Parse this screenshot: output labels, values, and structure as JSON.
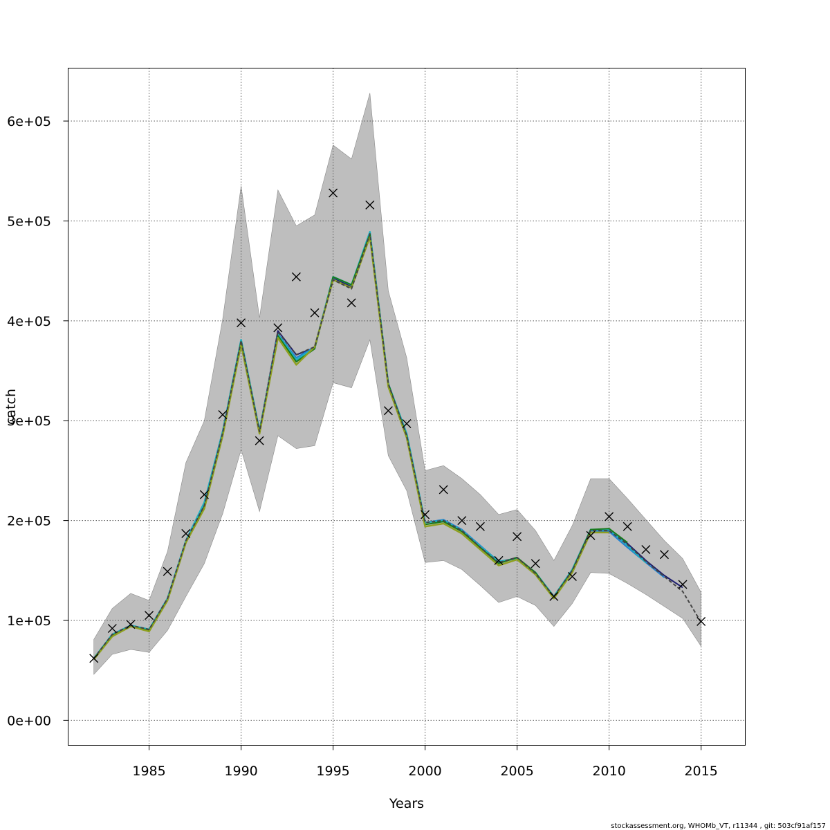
{
  "chart_data": {
    "type": "line",
    "xlabel": "Years",
    "ylabel": "catch",
    "xlim": [
      1980.6,
      2017.4
    ],
    "ylim": [
      -25000,
      653000
    ],
    "x_ticks": [
      1985,
      1990,
      1995,
      2000,
      2005,
      2010,
      2015
    ],
    "x_tick_labels": [
      "1985",
      "1990",
      "1995",
      "2000",
      "2005",
      "2010",
      "2015"
    ],
    "y_ticks": [
      0,
      100000,
      200000,
      300000,
      400000,
      500000,
      600000
    ],
    "y_tick_labels": [
      "0e+00",
      "1e+05",
      "2e+05",
      "3e+05",
      "4e+05",
      "5e+05",
      "6e+05"
    ],
    "grid": true,
    "credit": "stockassessment.org, WHOMb_VT, r11344 , git: 503cf91af157",
    "band": {
      "fill": "#bebebe",
      "years": [
        1982,
        1983,
        1984,
        1985,
        1986,
        1987,
        1988,
        1989,
        1990,
        1991,
        1992,
        1993,
        1994,
        1995,
        1996,
        1997,
        1998,
        1999,
        2000,
        2001,
        2002,
        2003,
        2004,
        2005,
        2006,
        2007,
        2008,
        2009,
        2010,
        2011,
        2012,
        2013,
        2014,
        2015
      ],
      "upper": [
        81000,
        112000,
        127000,
        120000,
        169000,
        258000,
        300000,
        402000,
        535000,
        403000,
        531000,
        495000,
        506000,
        576000,
        562000,
        628000,
        430000,
        363000,
        250000,
        255000,
        242000,
        226000,
        206000,
        211000,
        190000,
        160000,
        195000,
        242000,
        242000,
        222000,
        201000,
        180000,
        162000,
        128000
      ],
      "lower": [
        46000,
        66000,
        71000,
        68000,
        90000,
        124000,
        157000,
        207000,
        271000,
        209000,
        285000,
        272000,
        275000,
        338000,
        333000,
        381000,
        265000,
        230000,
        158000,
        160000,
        151000,
        135000,
        118000,
        124000,
        115000,
        94000,
        117000,
        148000,
        147000,
        137000,
        126000,
        114000,
        102000,
        74000
      ]
    },
    "series": [
      {
        "color": "#1d1d6e",
        "width": 2,
        "x": [
          1982,
          1983,
          1984,
          1985,
          1986,
          1987,
          1988,
          1989,
          1990,
          1991,
          1992,
          1993,
          1994,
          1995,
          1996,
          1997,
          1998,
          1999,
          2000,
          2001,
          2002,
          2003,
          2004,
          2005,
          2006,
          2007,
          2008,
          2009,
          2010,
          2011,
          2012,
          2013,
          2014
        ],
        "y": [
          62000,
          86000,
          95000,
          91000,
          122000,
          180000,
          215000,
          288000,
          381000,
          289000,
          390000,
          366000,
          373000,
          443000,
          434000,
          488000,
          337000,
          285000,
          198000,
          200000,
          190000,
          173000,
          158000,
          163000,
          147000,
          124000,
          150000,
          190000,
          190000,
          177000,
          160000,
          145000,
          133000
        ]
      },
      {
        "color": "#2080d0",
        "width": 2,
        "x": [
          1982,
          1983,
          1984,
          1985,
          1986,
          1987,
          1988,
          1989,
          1990,
          1991,
          1992,
          1993,
          1994,
          1995,
          1996,
          1997,
          1998,
          1999,
          2000,
          2001,
          2002,
          2003,
          2004,
          2005,
          2006,
          2007,
          2008,
          2009,
          2010,
          2011,
          2012,
          2013
        ],
        "y": [
          62000,
          86000,
          95000,
          91000,
          122000,
          180000,
          218000,
          290000,
          381000,
          290000,
          387000,
          363000,
          374000,
          444000,
          436000,
          489000,
          337000,
          287000,
          198000,
          201000,
          191000,
          175000,
          159000,
          162000,
          147000,
          124000,
          150000,
          190000,
          189000,
          173000,
          158000,
          143000
        ]
      },
      {
        "color": "#20b0c0",
        "width": 2.5,
        "x": [
          1982,
          1983,
          1984,
          1985,
          1986,
          1987,
          1988,
          1989,
          1990,
          1991,
          1992,
          1993,
          1994,
          1995,
          1996,
          1997,
          1998,
          1999,
          2000,
          2001,
          2002,
          2003,
          2004,
          2005,
          2006,
          2007,
          2008,
          2009,
          2010,
          2011,
          2012
        ],
        "y": [
          62000,
          86000,
          95000,
          91000,
          122000,
          180000,
          218000,
          289000,
          381000,
          290000,
          386000,
          361000,
          373000,
          444000,
          436000,
          489000,
          337000,
          287000,
          198000,
          200000,
          190000,
          174000,
          159000,
          162000,
          148000,
          124000,
          151000,
          191000,
          191000,
          175000,
          158000
        ]
      },
      {
        "color": "#1a7a1a",
        "width": 2,
        "x": [
          1982,
          1983,
          1984,
          1985,
          1986,
          1987,
          1988,
          1989,
          1990,
          1991,
          1992,
          1993,
          1994,
          1995,
          1996,
          1997,
          1998,
          1999,
          2000,
          2001,
          2002,
          2003,
          2004,
          2005,
          2006,
          2007,
          2008,
          2009,
          2010,
          2011
        ],
        "y": [
          62000,
          85000,
          94000,
          90000,
          121000,
          178000,
          214000,
          287000,
          379000,
          289000,
          385000,
          359000,
          372000,
          444000,
          436000,
          487000,
          337000,
          285000,
          196000,
          199000,
          189000,
          173000,
          157000,
          163000,
          148000,
          123000,
          150000,
          191000,
          192000,
          178000
        ]
      },
      {
        "color": "#8fa020",
        "width": 2.5,
        "x": [
          1982,
          1983,
          1984,
          1985,
          1986,
          1987,
          1988,
          1989,
          1990,
          1991,
          1992,
          1993,
          1994,
          1995,
          1996,
          1997,
          1998,
          1999,
          2000,
          2001,
          2002,
          2003,
          2004,
          2005,
          2006,
          2007,
          2008,
          2009,
          2010
        ],
        "y": [
          61000,
          84000,
          94000,
          89000,
          120000,
          178000,
          212000,
          285000,
          376000,
          287000,
          383000,
          356000,
          374000,
          441000,
          433000,
          484000,
          334000,
          283000,
          194000,
          197000,
          187000,
          171000,
          155000,
          161000,
          146000,
          122000,
          148000,
          188000,
          188000
        ]
      },
      {
        "color": "#444444",
        "width": 2,
        "dashed": true,
        "x": [
          1982,
          1983,
          1984,
          1985,
          1986,
          1987,
          1988,
          1989,
          1990,
          1991,
          1992,
          1993,
          1994,
          1995,
          1996,
          1997,
          1998,
          1999,
          2000,
          2001,
          2002,
          2003,
          2004,
          2005,
          2006,
          2007,
          2008,
          2009,
          2010,
          2011,
          2012,
          2013,
          2014,
          2015
        ],
        "y": [
          62000,
          86000,
          95000,
          91000,
          122000,
          180000,
          215000,
          288000,
          380000,
          289000,
          389000,
          366000,
          374000,
          441000,
          432000,
          487000,
          337000,
          285000,
          198000,
          200000,
          190000,
          173000,
          158000,
          163000,
          147000,
          124000,
          150000,
          190000,
          190000,
          176000,
          159000,
          144000,
          129000,
          98000
        ]
      }
    ],
    "observed": {
      "marker": "x",
      "x": [
        1982,
        1983,
        1984,
        1985,
        1986,
        1987,
        1988,
        1989,
        1990,
        1991,
        1992,
        1993,
        1994,
        1995,
        1996,
        1997,
        1998,
        1999,
        2000,
        2001,
        2002,
        2003,
        2004,
        2005,
        2006,
        2007,
        2008,
        2009,
        2010,
        2011,
        2012,
        2013,
        2014,
        2015
      ],
      "y": [
        62000,
        92000,
        96000,
        105000,
        149000,
        187000,
        226000,
        306000,
        398000,
        280000,
        393000,
        444000,
        408000,
        528000,
        418000,
        516000,
        310000,
        297000,
        206000,
        231000,
        200000,
        194000,
        160000,
        184000,
        157000,
        124000,
        144000,
        185000,
        204000,
        194000,
        171000,
        166000,
        136000,
        99000
      ]
    }
  }
}
